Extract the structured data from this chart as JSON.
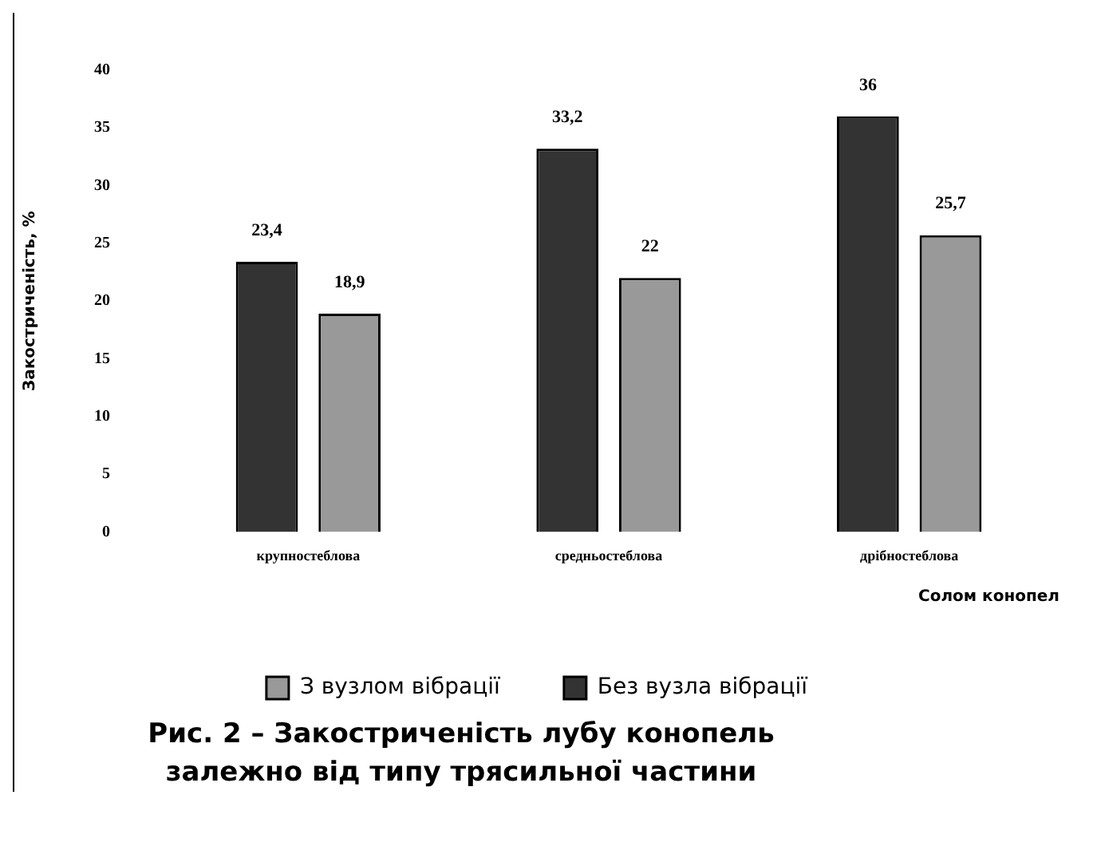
{
  "chart_data": {
    "type": "bar",
    "title": "Рис. 2 – Закостриченість лубу конопель\nзалежно від типу трясильної частини",
    "xlabel": "Солом конопел",
    "ylabel": "Закостриченість, %",
    "categories": [
      "крупностеблова",
      "средньостеблова",
      "дрібностеблова"
    ],
    "series": [
      {
        "name": "Без вузла вібрації",
        "color": "#333333",
        "values": [
          23.4,
          33.2,
          36
        ],
        "value_labels": [
          "23,4",
          "33,2",
          "36"
        ]
      },
      {
        "name": "З вузлом вібрації",
        "color": "#999999",
        "values": [
          18.9,
          22,
          25.7
        ],
        "value_labels": [
          "18,9",
          "22",
          "25,7"
        ]
      }
    ],
    "ylim": [
      0,
      40
    ],
    "yticks": [
      0,
      5,
      10,
      15,
      20,
      25,
      30,
      35,
      40
    ],
    "grid": false,
    "legend": "bottom"
  }
}
